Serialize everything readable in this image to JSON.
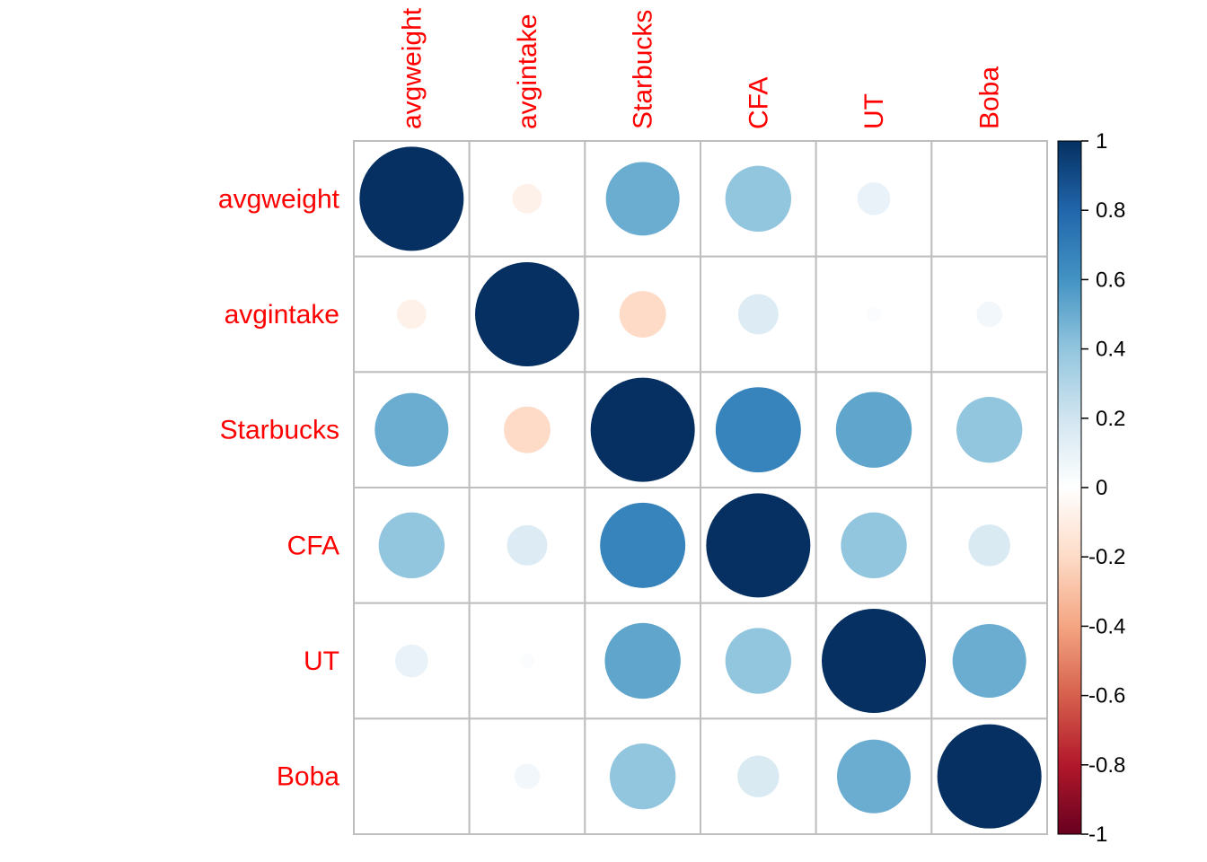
{
  "chart_data": {
    "type": "heatmap",
    "style": "correlation-circles",
    "variables": [
      "avgweight",
      "avgintake",
      "Starbucks",
      "CFA",
      "UT",
      "Boba"
    ],
    "matrix": [
      [
        1.0,
        -0.08,
        0.5,
        0.4,
        0.1,
        0.0
      ],
      [
        -0.08,
        1.0,
        -0.2,
        0.15,
        0.02,
        0.06
      ],
      [
        0.5,
        -0.2,
        1.0,
        0.67,
        0.53,
        0.4
      ],
      [
        0.4,
        0.15,
        0.67,
        1.0,
        0.4,
        0.16
      ],
      [
        0.1,
        0.02,
        0.53,
        0.4,
        1.0,
        0.5
      ],
      [
        0.0,
        0.06,
        0.4,
        0.16,
        0.5,
        1.0
      ]
    ],
    "colorbar": {
      "range": [
        -1,
        1
      ],
      "ticks": [
        "1",
        "0.8",
        "0.6",
        "0.4",
        "0.2",
        "0",
        "-0.2",
        "-0.4",
        "-0.6",
        "-0.8",
        "-1"
      ],
      "colors": [
        "#67001F",
        "#B2182B",
        "#D6604D",
        "#F4A582",
        "#FDDBC7",
        "#FFFFFF",
        "#D1E5F0",
        "#92C5DE",
        "#4393C3",
        "#2166AC",
        "#053061"
      ]
    },
    "label_color": "#FF0000",
    "grid_color": "#BEBEBE",
    "grid": true
  }
}
